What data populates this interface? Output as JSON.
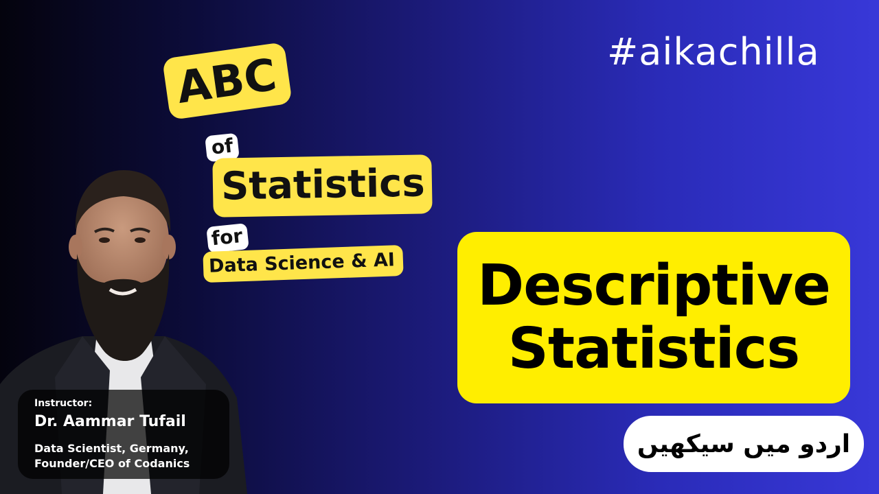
{
  "hashtag": "#aikachilla",
  "course": {
    "line1": "ABC",
    "line2": "of",
    "line3": "Statistics",
    "line4": "for",
    "line5": "Data Science & AI"
  },
  "topic": {
    "line1": "Descriptive",
    "line2": "Statistics"
  },
  "urdu_label": "اردو میں سیکھیں",
  "instructor": {
    "label": "Instructor:",
    "name": "Dr. Aammar Tufail",
    "role_line1": "Data Scientist, Germany,",
    "role_line2": "Founder/CEO of Codanics"
  },
  "colors": {
    "accent_yellow": "#ffee00",
    "pill_yellow": "#ffe54a",
    "background_dark": "#04030d",
    "background_blue": "#3838d8"
  },
  "icons": {
    "portrait": "person-portrait-icon"
  }
}
